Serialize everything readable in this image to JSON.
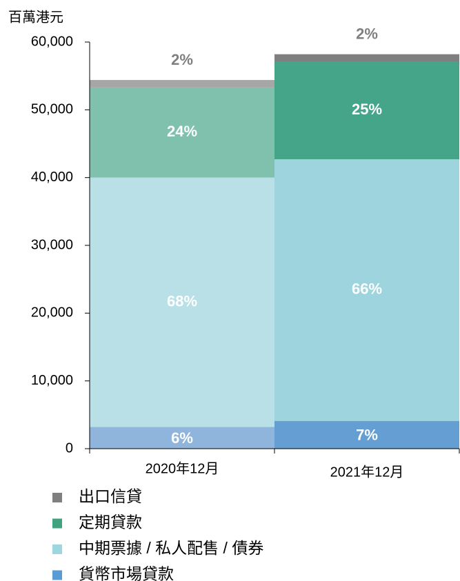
{
  "chart_data": {
    "type": "stacked_bar",
    "y_label": "百萬港元",
    "categories": [
      "2020年12月",
      "2021年12月"
    ],
    "ylim": [
      0,
      60000
    ],
    "yticks": [
      {
        "value": 0,
        "label": "0"
      },
      {
        "value": 10000,
        "label": "10,000"
      },
      {
        "value": 20000,
        "label": "20,000"
      },
      {
        "value": 30000,
        "label": "30,000"
      },
      {
        "value": 40000,
        "label": "40,000"
      },
      {
        "value": 50000,
        "label": "50,000"
      },
      {
        "value": 60000,
        "label": "60,000"
      }
    ],
    "series": [
      {
        "name": "貨幣市場貸款",
        "color": "#5b9bd5",
        "colors": [
          "#8fb5dc",
          "#659ed2"
        ],
        "values": [
          3200,
          4100
        ],
        "share_labels": [
          "6%",
          "7%"
        ]
      },
      {
        "name": "中期票據 / 私人配售 / 債券",
        "color": "#9ed6e0",
        "colors": [
          "#b8e0e6",
          "#9dd4dd"
        ],
        "values": [
          36800,
          38600
        ],
        "share_labels": [
          "68%",
          "66%"
        ]
      },
      {
        "name": "定期貸款",
        "color": "#3fa37f",
        "colors": [
          "#80c1ad",
          "#45a588"
        ],
        "values": [
          13300,
          14400
        ],
        "share_labels": [
          "24%",
          "25%"
        ]
      },
      {
        "name": "出口信貸",
        "color": "#7f7f7f",
        "colors": [
          "#a6a6a6",
          "#7f7f7f"
        ],
        "values": [
          1100,
          1100
        ],
        "share_labels": [
          "2%",
          "2%"
        ]
      }
    ]
  }
}
